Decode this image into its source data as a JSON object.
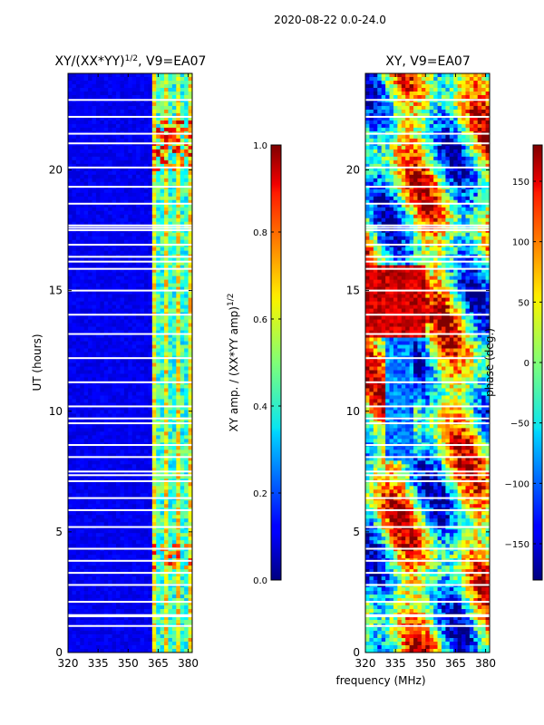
{
  "suptitle": "2020-08-22 0.0-24.0",
  "chart_data": [
    {
      "type": "heatmap",
      "title_text": "XY/(XX*YY)",
      "title_sup": "1/2",
      "title_rest": ", V9=EA07",
      "xlabel": "",
      "ylabel": "UT (hours)",
      "xlim": [
        320,
        382
      ],
      "ylim": [
        0,
        24
      ],
      "xticks": [
        "320",
        "335",
        "350",
        "365",
        "380"
      ],
      "xtick_values": [
        320,
        335,
        350,
        365,
        380
      ],
      "yticks": [
        "0",
        "5",
        "10",
        "15",
        "20"
      ],
      "ytick_values": [
        0,
        5,
        10,
        15,
        20
      ],
      "colorbar": {
        "label_text": "XY amp. / (XX*YY amp)",
        "label_sup": "1/2",
        "range": [
          0.0,
          1.0
        ],
        "ticks": [
          "0.0",
          "0.2",
          "0.4",
          "0.6",
          "0.8",
          "1.0"
        ],
        "tick_values": [
          0.0,
          0.2,
          0.4,
          0.6,
          0.8,
          1.0
        ],
        "colormap": "jet"
      },
      "gaps_hours": [
        1.1,
        1.5,
        1.55,
        2.1,
        2.8,
        3.3,
        3.8,
        4.3,
        5.2,
        5.9,
        6.4,
        7.1,
        7.35,
        7.5,
        8.1,
        8.6,
        9.5,
        9.7,
        10.2,
        11.2,
        12.2,
        13.2,
        14.0,
        15.0,
        15.9,
        16.2,
        16.4,
        16.9,
        17.5,
        17.6,
        17.7,
        18.6,
        19.3,
        20.1,
        21.1,
        21.5,
        22.2,
        22.9
      ],
      "high_value_band_MHz": [
        362,
        382
      ]
    },
    {
      "type": "heatmap",
      "title_text": "XY, V9=EA07",
      "xlabel": "frequency (MHz)",
      "ylabel": "",
      "xlim": [
        320,
        382
      ],
      "ylim": [
        0,
        24
      ],
      "xticks": [
        "320",
        "335",
        "350",
        "365",
        "380"
      ],
      "xtick_values": [
        320,
        335,
        350,
        365,
        380
      ],
      "yticks": [
        "0",
        "5",
        "10",
        "15",
        "20"
      ],
      "ytick_values": [
        0,
        5,
        10,
        15,
        20
      ],
      "colorbar": {
        "label_text": "phase (deg.)",
        "range": [
          -180,
          180
        ],
        "ticks": [
          "−150",
          "−100",
          "−50",
          "0",
          "50",
          "100",
          "150"
        ],
        "tick_values": [
          -150,
          -100,
          -50,
          0,
          50,
          100,
          150
        ],
        "colormap": "jet"
      },
      "gaps_hours": [
        1.1,
        1.5,
        1.55,
        2.1,
        2.8,
        3.3,
        3.8,
        4.3,
        5.2,
        5.9,
        6.4,
        7.1,
        7.35,
        7.5,
        8.1,
        8.6,
        9.5,
        9.7,
        10.2,
        11.2,
        12.2,
        13.2,
        14.0,
        15.0,
        15.9,
        16.2,
        16.4,
        16.9,
        17.5,
        17.6,
        17.7,
        18.6,
        19.3,
        20.1,
        21.1,
        21.5,
        22.2,
        22.9
      ]
    }
  ]
}
